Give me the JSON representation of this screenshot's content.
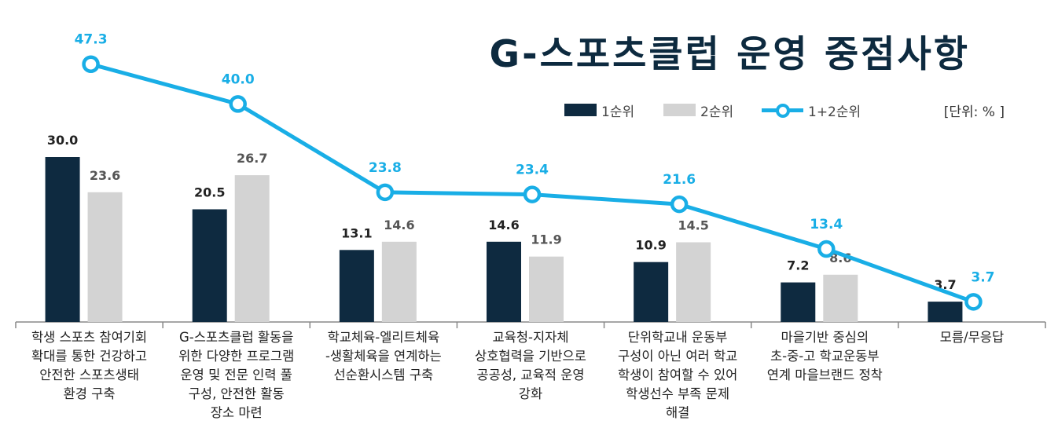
{
  "chart_data": {
    "type": "bar",
    "title": "G-스포츠클럽 운영 중점사항",
    "unit": "[단위: % ]",
    "categories": [
      "학생 스포츠 참여기회\n확대를 통한 건강하고\n안전한 스포츠생태\n환경 구축",
      "G-스포츠클럽 활동을\n위한 다양한 프로그램\n운영 및 전문 인력 풀\n구성, 안전한 활동\n장소 마련",
      "학교체육-엘리트체육\n-생활체육을 연계하는\n선순환시스템 구축",
      "교육청-지자체\n상호협력을 기반으로\n공공성, 교육적 운영\n강화",
      "단위학교내 운동부\n구성이 아닌 여러 학교\n학생이 참여할 수 있어\n학생선수 부족 문제\n해결",
      "마을기반 중심의\n초-중-고 학교운동부\n연계 마을브랜드 정착",
      "모름/무응답"
    ],
    "series": [
      {
        "name": "1순위",
        "type": "bar",
        "color": "#0e2a40",
        "values": [
          30.0,
          20.5,
          13.1,
          14.6,
          10.9,
          7.2,
          3.7
        ]
      },
      {
        "name": "2순위",
        "type": "bar",
        "color": "#d3d3d3",
        "values": [
          23.6,
          26.7,
          14.6,
          11.9,
          14.5,
          8.6,
          null
        ]
      },
      {
        "name": "1+2순위",
        "type": "line",
        "color": "#19aee6",
        "values": [
          47.3,
          40.0,
          23.8,
          23.4,
          21.6,
          13.4,
          3.7
        ]
      }
    ],
    "value_labels": {
      "1순위": [
        "30.0",
        "20.5",
        "13.1",
        "14.6",
        "10.9",
        "7.2",
        "3.7"
      ],
      "2순위": [
        "23.6",
        "26.7",
        "14.6",
        "11.9",
        "14.5",
        "8.6",
        ""
      ],
      "1+2순위": [
        "47.3",
        "40.0",
        "23.8",
        "23.4",
        "21.6",
        "13.4",
        "3.7"
      ]
    },
    "label_colors": {
      "1순위": "#222222",
      "2순위": "#555555",
      "1+2순위": "#19aee6"
    },
    "ylim": [
      0,
      50
    ],
    "grid": false,
    "legend_position": "top-right",
    "xlabel": "",
    "ylabel": ""
  }
}
